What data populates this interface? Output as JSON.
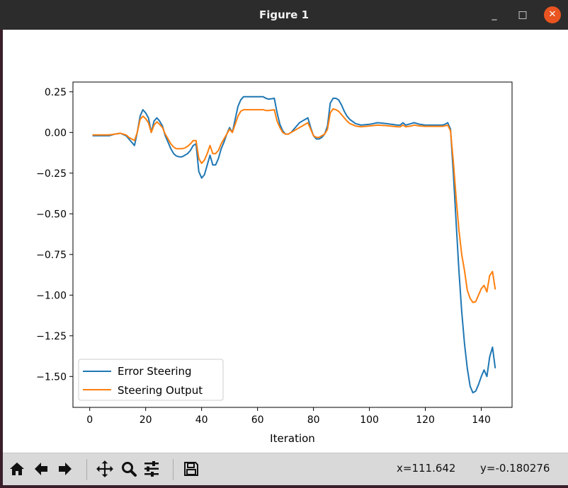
{
  "window": {
    "title": "Figure 1",
    "controls": {
      "minimize": "_",
      "maximize": "□",
      "close": "✕"
    }
  },
  "toolbar": {
    "buttons": [
      {
        "name": "home-icon",
        "label": "Home"
      },
      {
        "name": "back-arrow-icon",
        "label": "Back"
      },
      {
        "name": "forward-arrow-icon",
        "label": "Forward"
      },
      {
        "name": "pan-icon",
        "label": "Pan"
      },
      {
        "name": "zoom-icon",
        "label": "Zoom"
      },
      {
        "name": "configure-subplots-icon",
        "label": "Subplots"
      },
      {
        "name": "save-icon",
        "label": "Save"
      }
    ],
    "x_readout": "x=111.642",
    "y_readout": "y=-0.180276"
  },
  "chart_data": {
    "type": "line",
    "title": "",
    "xlabel": "Iteration",
    "ylabel": "",
    "xlim": [
      -6,
      151
    ],
    "ylim": [
      -1.69,
      0.31
    ],
    "xticks": [
      0,
      20,
      40,
      60,
      80,
      100,
      120,
      140
    ],
    "xtick_labels": [
      "0",
      "20",
      "40",
      "60",
      "80",
      "100",
      "120",
      "140"
    ],
    "yticks": [
      0.25,
      0.0,
      -0.25,
      -0.5,
      -0.75,
      -1.0,
      -1.25,
      -1.5
    ],
    "ytick_labels": [
      "0.25",
      "0.00",
      "−0.25",
      "−0.50",
      "−0.75",
      "−1.00",
      "−1.25",
      "−1.50"
    ],
    "legend_position": "lower-left",
    "series": [
      {
        "name": "Error Steering",
        "color": "#1f77b4",
        "points": [
          [
            1,
            -0.02
          ],
          [
            7,
            -0.02
          ],
          [
            9,
            -0.01
          ],
          [
            11,
            -0.005
          ],
          [
            13,
            -0.02
          ],
          [
            14,
            -0.04
          ],
          [
            16,
            -0.08
          ],
          [
            17,
            0.0
          ],
          [
            18,
            0.1
          ],
          [
            19,
            0.14
          ],
          [
            20,
            0.12
          ],
          [
            21,
            0.09
          ],
          [
            22,
            0.0
          ],
          [
            23,
            0.07
          ],
          [
            24,
            0.09
          ],
          [
            25,
            0.07
          ],
          [
            26,
            0.04
          ],
          [
            27,
            -0.02
          ],
          [
            28,
            -0.06
          ],
          [
            29,
            -0.1
          ],
          [
            30,
            -0.13
          ],
          [
            31,
            -0.145
          ],
          [
            32,
            -0.15
          ],
          [
            33,
            -0.15
          ],
          [
            34,
            -0.14
          ],
          [
            35,
            -0.13
          ],
          [
            36,
            -0.11
          ],
          [
            37,
            -0.08
          ],
          [
            38,
            -0.07
          ],
          [
            39,
            -0.24
          ],
          [
            40,
            -0.28
          ],
          [
            41,
            -0.26
          ],
          [
            42,
            -0.2
          ],
          [
            43,
            -0.14
          ],
          [
            44,
            -0.2
          ],
          [
            45,
            -0.2
          ],
          [
            46,
            -0.16
          ],
          [
            47,
            -0.1
          ],
          [
            48,
            -0.06
          ],
          [
            49,
            -0.01
          ],
          [
            50,
            0.03
          ],
          [
            51,
            0.0
          ],
          [
            52,
            0.08
          ],
          [
            53,
            0.16
          ],
          [
            54,
            0.2
          ],
          [
            55,
            0.22
          ],
          [
            62,
            0.22
          ],
          [
            63,
            0.21
          ],
          [
            64,
            0.205
          ],
          [
            66,
            0.21
          ],
          [
            67,
            0.12
          ],
          [
            68,
            0.05
          ],
          [
            69,
            0.01
          ],
          [
            70,
            -0.01
          ],
          [
            71,
            -0.01
          ],
          [
            72,
            0.0
          ],
          [
            73,
            0.02
          ],
          [
            74,
            0.04
          ],
          [
            75,
            0.06
          ],
          [
            76,
            0.07
          ],
          [
            77,
            0.08
          ],
          [
            78,
            0.09
          ],
          [
            79,
            0.03
          ],
          [
            80,
            -0.02
          ],
          [
            81,
            -0.04
          ],
          [
            82,
            -0.04
          ],
          [
            83,
            -0.03
          ],
          [
            84,
            -0.01
          ],
          [
            85,
            0.04
          ],
          [
            86,
            0.18
          ],
          [
            87,
            0.21
          ],
          [
            88,
            0.21
          ],
          [
            89,
            0.2
          ],
          [
            90,
            0.17
          ],
          [
            91,
            0.13
          ],
          [
            92,
            0.1
          ],
          [
            93,
            0.08
          ],
          [
            95,
            0.055
          ],
          [
            97,
            0.045
          ],
          [
            100,
            0.05
          ],
          [
            103,
            0.06
          ],
          [
            106,
            0.055
          ],
          [
            110,
            0.045
          ],
          [
            111,
            0.045
          ],
          [
            112,
            0.06
          ],
          [
            113,
            0.045
          ],
          [
            115,
            0.055
          ],
          [
            116,
            0.06
          ],
          [
            118,
            0.05
          ],
          [
            120,
            0.045
          ],
          [
            126,
            0.045
          ],
          [
            127,
            0.05
          ],
          [
            128,
            0.06
          ],
          [
            129,
            0.02
          ],
          [
            130,
            -0.25
          ],
          [
            131,
            -0.55
          ],
          [
            132,
            -0.85
          ],
          [
            133,
            -1.1
          ],
          [
            134,
            -1.3
          ],
          [
            135,
            -1.45
          ],
          [
            136,
            -1.56
          ],
          [
            137,
            -1.6
          ],
          [
            138,
            -1.59
          ],
          [
            139,
            -1.55
          ],
          [
            140,
            -1.5
          ],
          [
            141,
            -1.46
          ],
          [
            142,
            -1.5
          ],
          [
            143,
            -1.38
          ],
          [
            144,
            -1.32
          ],
          [
            145,
            -1.45
          ]
        ]
      },
      {
        "name": "Steering Output",
        "color": "#ff7f0e",
        "points": [
          [
            1,
            -0.015
          ],
          [
            7,
            -0.015
          ],
          [
            9,
            -0.01
          ],
          [
            11,
            -0.005
          ],
          [
            13,
            -0.015
          ],
          [
            14,
            -0.03
          ],
          [
            16,
            -0.05
          ],
          [
            17,
            0.0
          ],
          [
            18,
            0.08
          ],
          [
            19,
            0.1
          ],
          [
            20,
            0.085
          ],
          [
            21,
            0.06
          ],
          [
            22,
            0.0
          ],
          [
            23,
            0.045
          ],
          [
            24,
            0.065
          ],
          [
            25,
            0.05
          ],
          [
            26,
            0.03
          ],
          [
            27,
            -0.01
          ],
          [
            28,
            -0.04
          ],
          [
            29,
            -0.07
          ],
          [
            30,
            -0.09
          ],
          [
            31,
            -0.1
          ],
          [
            32,
            -0.1
          ],
          [
            33,
            -0.1
          ],
          [
            34,
            -0.095
          ],
          [
            35,
            -0.085
          ],
          [
            36,
            -0.07
          ],
          [
            37,
            -0.05
          ],
          [
            38,
            -0.05
          ],
          [
            39,
            -0.16
          ],
          [
            40,
            -0.19
          ],
          [
            41,
            -0.17
          ],
          [
            42,
            -0.13
          ],
          [
            43,
            -0.08
          ],
          [
            44,
            -0.13
          ],
          [
            45,
            -0.13
          ],
          [
            46,
            -0.11
          ],
          [
            47,
            -0.07
          ],
          [
            48,
            -0.04
          ],
          [
            49,
            -0.01
          ],
          [
            50,
            0.02
          ],
          [
            51,
            0.0
          ],
          [
            52,
            0.05
          ],
          [
            53,
            0.1
          ],
          [
            54,
            0.13
          ],
          [
            55,
            0.14
          ],
          [
            62,
            0.14
          ],
          [
            63,
            0.135
          ],
          [
            64,
            0.135
          ],
          [
            66,
            0.14
          ],
          [
            67,
            0.07
          ],
          [
            68,
            0.03
          ],
          [
            69,
            0.0
          ],
          [
            70,
            -0.01
          ],
          [
            71,
            -0.01
          ],
          [
            72,
            0.0
          ],
          [
            73,
            0.01
          ],
          [
            74,
            0.02
          ],
          [
            75,
            0.03
          ],
          [
            76,
            0.04
          ],
          [
            77,
            0.05
          ],
          [
            78,
            0.06
          ],
          [
            79,
            0.02
          ],
          [
            80,
            -0.02
          ],
          [
            81,
            -0.03
          ],
          [
            82,
            -0.03
          ],
          [
            83,
            -0.02
          ],
          [
            84,
            -0.01
          ],
          [
            85,
            0.02
          ],
          [
            86,
            0.12
          ],
          [
            87,
            0.145
          ],
          [
            88,
            0.14
          ],
          [
            89,
            0.13
          ],
          [
            90,
            0.11
          ],
          [
            91,
            0.09
          ],
          [
            92,
            0.07
          ],
          [
            93,
            0.055
          ],
          [
            95,
            0.04
          ],
          [
            97,
            0.035
          ],
          [
            100,
            0.04
          ],
          [
            103,
            0.045
          ],
          [
            106,
            0.042
          ],
          [
            110,
            0.035
          ],
          [
            111,
            0.035
          ],
          [
            112,
            0.045
          ],
          [
            113,
            0.035
          ],
          [
            115,
            0.04
          ],
          [
            116,
            0.045
          ],
          [
            118,
            0.04
          ],
          [
            120,
            0.038
          ],
          [
            126,
            0.038
          ],
          [
            127,
            0.04
          ],
          [
            128,
            0.045
          ],
          [
            129,
            0.01
          ],
          [
            130,
            -0.18
          ],
          [
            131,
            -0.4
          ],
          [
            132,
            -0.6
          ],
          [
            133,
            -0.75
          ],
          [
            134,
            -0.85
          ],
          [
            135,
            -0.97
          ],
          [
            136,
            -1.02
          ],
          [
            137,
            -1.045
          ],
          [
            138,
            -1.04
          ],
          [
            139,
            -1.0
          ],
          [
            140,
            -0.96
          ],
          [
            141,
            -0.94
          ],
          [
            142,
            -0.98
          ],
          [
            143,
            -0.88
          ],
          [
            144,
            -0.855
          ],
          [
            145,
            -0.965
          ]
        ]
      }
    ]
  }
}
